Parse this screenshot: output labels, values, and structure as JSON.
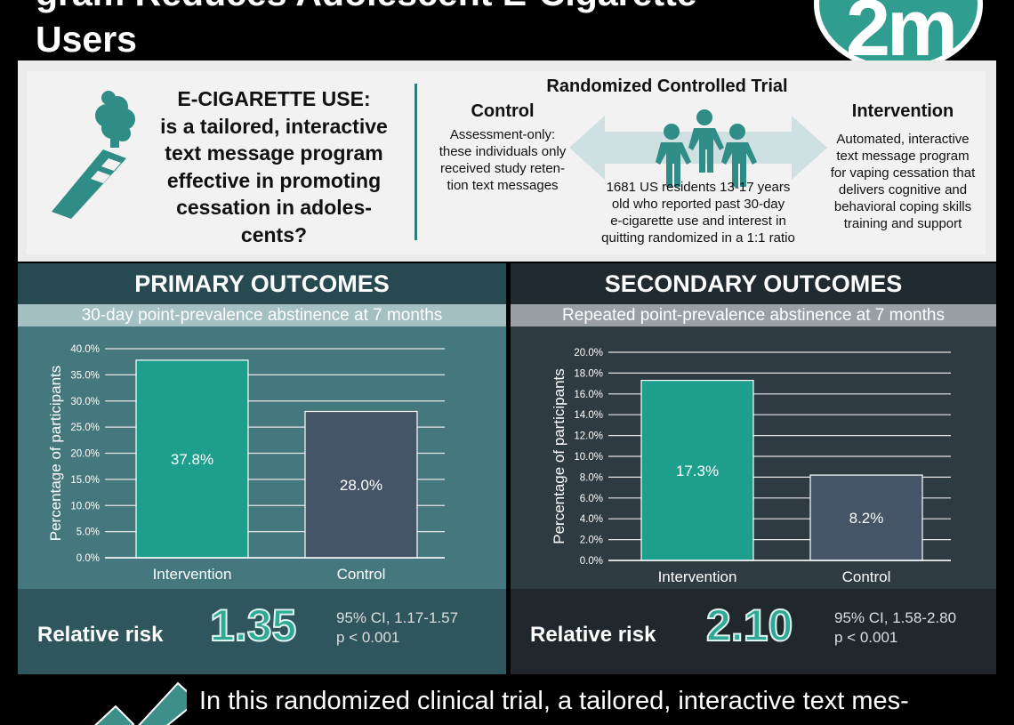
{
  "header": {
    "title": "gram Reduces Adolescent E-Cigarette Users",
    "logo_text": "2m"
  },
  "question": {
    "heading": "E-CIGARETTE USE:",
    "lines": [
      "is a tailored, interactive",
      "text message program",
      "effective in promoting",
      "cessation in adoles-",
      "cents?"
    ]
  },
  "trial": {
    "title": "Randomized Controlled Trial",
    "control": {
      "title": "Control",
      "lines": [
        "Assessment-only:",
        "these individuals only",
        "received study reten-",
        "tion text messages"
      ]
    },
    "intervention": {
      "title": "Intervention",
      "lines": [
        "Automated, interactive",
        "text message program",
        "for vaping cessation that",
        "delivers cognitive and",
        "behavioral coping skills",
        "training and support"
      ]
    },
    "population": [
      "1681 US residents 13-17 years",
      "old who reported past 30-day",
      "e-cigarette use and interest in",
      "quitting randomized in a 1:1 ratio"
    ]
  },
  "colors": {
    "intervention_bar": "#1e9e8c",
    "control_bar": "#465468",
    "accent": "#2fa896"
  },
  "primary": {
    "heading": "PRIMARY OUTCOMES",
    "subheading": "30-day point-prevalence abstinence at 7 months",
    "rr_label": "Relative risk",
    "rr_value": "1.35",
    "ci": "95% CI, 1.17-1.57",
    "p": "p < 0.001"
  },
  "secondary": {
    "heading": "SECONDARY OUTCOMES",
    "subheading": "Repeated point-prevalence abstinence at 7 months",
    "rr_label": "Relative risk",
    "rr_value": "2.10",
    "ci": "95% CI, 1.58-2.80",
    "p": "p < 0.001"
  },
  "footer": {
    "text": "In this randomized clinical trial, a tailored, interactive text mes-"
  },
  "chart_data": [
    {
      "type": "bar",
      "categories": [
        "Intervention",
        "Control"
      ],
      "values": [
        37.8,
        28.0
      ],
      "value_labels": [
        "37.8%",
        "28.0%"
      ],
      "ylabel": "Percentage of participants",
      "ylim": [
        0,
        40
      ],
      "yticks": [
        "0.0%",
        "5.0%",
        "10.0%",
        "15.0%",
        "20.0%",
        "25.0%",
        "30.0%",
        "35.0%",
        "40.0%"
      ],
      "grid": true
    },
    {
      "type": "bar",
      "categories": [
        "Intervention",
        "Control"
      ],
      "values": [
        17.3,
        8.2
      ],
      "value_labels": [
        "17.3%",
        "8.2%"
      ],
      "ylabel": "Percentage of participants",
      "ylim": [
        0,
        20
      ],
      "yticks": [
        "0.0%",
        "2.0%",
        "4.0%",
        "6.0%",
        "8.0%",
        "10.0%",
        "12.0%",
        "14.0%",
        "16.0%",
        "18.0%",
        "20.0%"
      ],
      "grid": true
    }
  ]
}
